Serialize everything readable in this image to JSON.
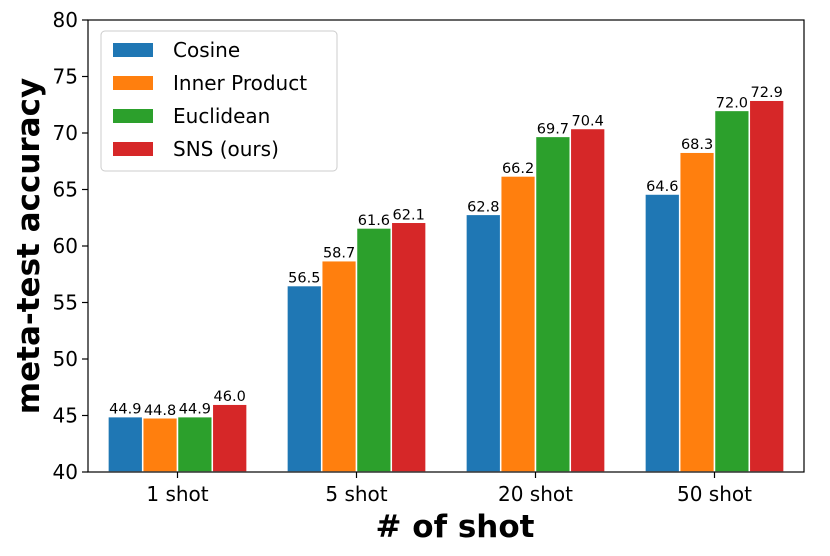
{
  "chart_data": {
    "type": "bar",
    "title": "",
    "xlabel": "# of shot",
    "ylabel": "meta-test accuracy",
    "categories": [
      "1 shot",
      "5 shot",
      "20 shot",
      "50 shot"
    ],
    "ylim": [
      40,
      80
    ],
    "yticks": [
      40,
      45,
      50,
      55,
      60,
      65,
      70,
      75,
      80
    ],
    "grid": false,
    "legend_position": "top-left",
    "series": [
      {
        "name": "Cosine",
        "color": "#1f77b4",
        "values": [
          44.9,
          56.5,
          62.8,
          64.6
        ],
        "labels": [
          "44.9",
          "56.5",
          "62.8",
          "64.6"
        ]
      },
      {
        "name": "Inner Product",
        "color": "#ff7f0e",
        "values": [
          44.8,
          58.7,
          66.2,
          68.3
        ],
        "labels": [
          "44.8",
          "58.7",
          "66.2",
          "68.3"
        ]
      },
      {
        "name": "Euclidean",
        "color": "#2ca02c",
        "values": [
          44.9,
          61.6,
          69.7,
          72.0
        ],
        "labels": [
          "44.9",
          "61.6",
          "69.7",
          "72.0"
        ]
      },
      {
        "name": "SNS (ours)",
        "color": "#d62728",
        "values": [
          46.0,
          62.1,
          70.4,
          72.9
        ],
        "labels": [
          "46.0",
          "62.1",
          "70.4",
          "72.9"
        ]
      }
    ]
  }
}
